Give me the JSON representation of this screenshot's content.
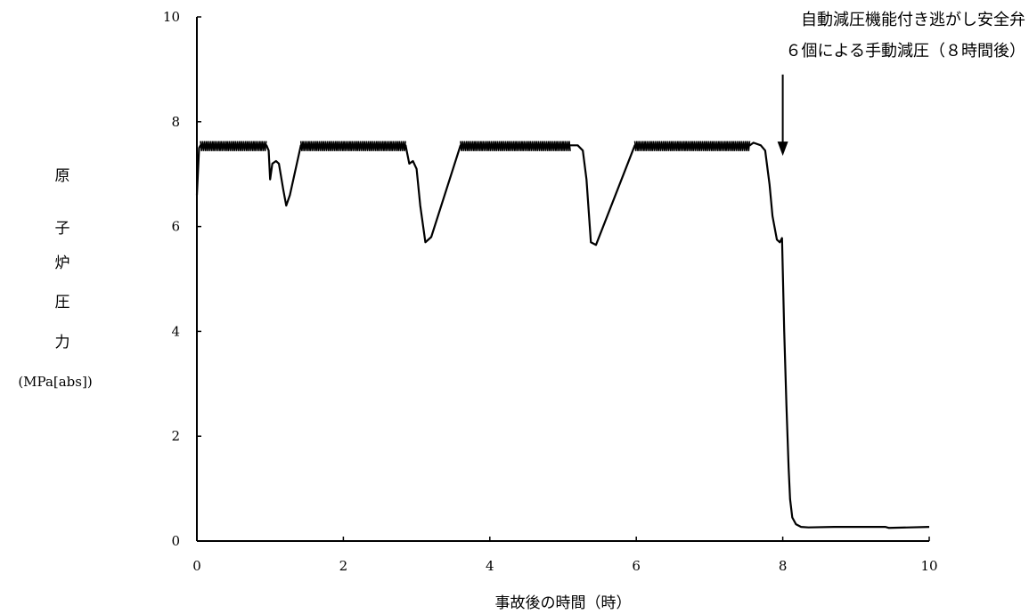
{
  "chart_data": {
    "type": "line",
    "title": "",
    "xlabel": "事故後の時間（時）",
    "ylabel": [
      "原",
      "子",
      "炉",
      "圧",
      "力",
      "(MPa[abs])"
    ],
    "xlim": [
      0,
      10
    ],
    "ylim": [
      0,
      10
    ],
    "x_ticks": [
      "0",
      "2",
      "4",
      "6",
      "8",
      "10"
    ],
    "y_ticks": [
      "0",
      "2",
      "4",
      "6",
      "8",
      "10"
    ],
    "grid": false,
    "legend": "none",
    "annotation": {
      "lines": [
        "自動減圧機能付き逃がし安全弁",
        "６個による手動減圧（８時間後）"
      ],
      "x": 8.0,
      "y_from": 8.9,
      "y_to": 7.35
    },
    "series": [
      {
        "line_color": "#000000",
        "oscillation_bands": [
          [
            0.05,
            0.95
          ],
          [
            1.42,
            2.85
          ],
          [
            3.6,
            5.1
          ],
          [
            5.98,
            7.55
          ]
        ],
        "x": [
          0.0,
          0.03,
          0.05,
          0.95,
          0.98,
          1.0,
          1.03,
          1.08,
          1.12,
          1.18,
          1.22,
          1.27,
          1.42,
          2.85,
          2.9,
          2.95,
          3.0,
          3.05,
          3.12,
          3.2,
          3.6,
          5.1,
          5.2,
          5.27,
          5.32,
          5.38,
          5.45,
          5.98,
          7.55,
          7.6,
          7.7,
          7.76,
          7.82,
          7.86,
          7.92,
          7.96,
          7.99,
          8.02,
          8.05,
          8.08,
          8.1,
          8.13,
          8.18,
          8.25,
          8.35,
          8.7,
          9.4,
          9.45,
          10.0
        ],
        "y": [
          6.6,
          7.5,
          7.55,
          7.55,
          7.45,
          6.9,
          7.2,
          7.25,
          7.2,
          6.7,
          6.4,
          6.6,
          7.55,
          7.55,
          7.2,
          7.25,
          7.1,
          6.4,
          5.7,
          5.8,
          7.55,
          7.55,
          7.55,
          7.45,
          6.9,
          5.7,
          5.65,
          7.55,
          7.55,
          7.6,
          7.55,
          7.45,
          6.8,
          6.2,
          5.75,
          5.7,
          5.78,
          4.0,
          2.6,
          1.4,
          0.8,
          0.45,
          0.32,
          0.27,
          0.26,
          0.27,
          0.27,
          0.25,
          0.27
        ]
      }
    ]
  }
}
